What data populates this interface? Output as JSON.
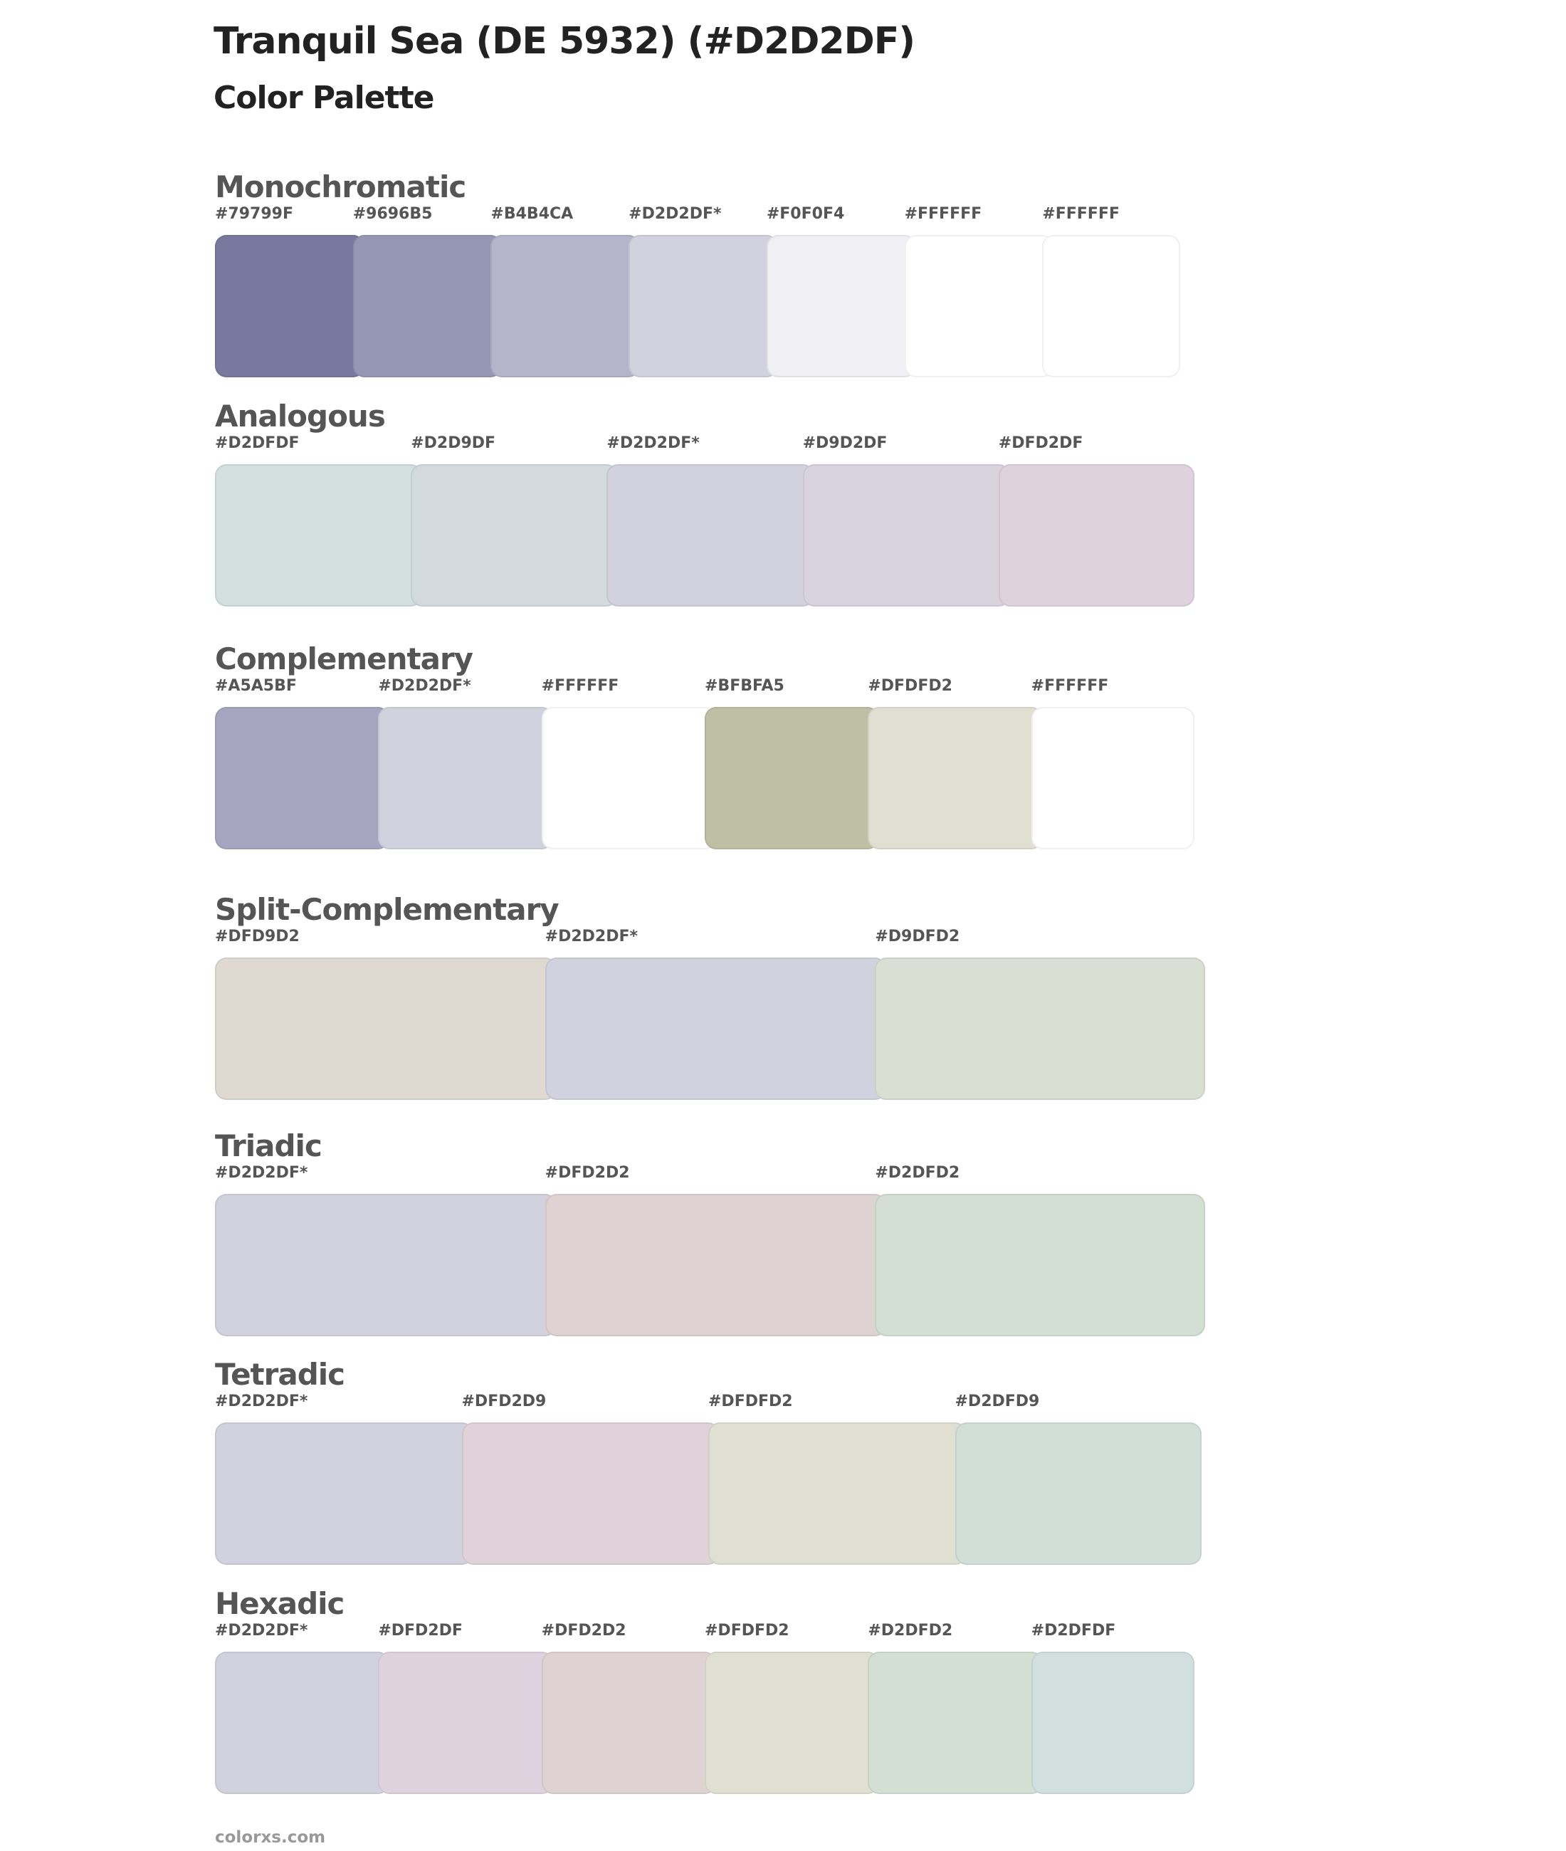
{
  "header": {
    "title": "Tranquil Sea (DE 5932) (#D2D2DF)",
    "subtitle": "Color Palette"
  },
  "sections": [
    {
      "name": "Monochromatic",
      "swatches": [
        {
          "label": "#79799F",
          "color": "#79799F"
        },
        {
          "label": "#9696B5",
          "color": "#9696B5"
        },
        {
          "label": "#B4B4CA",
          "color": "#B4B4CA"
        },
        {
          "label": "#D2D2DF*",
          "color": "#D2D2DF"
        },
        {
          "label": "#F0F0F4",
          "color": "#F0F0F4"
        },
        {
          "label": "#FFFFFF",
          "color": "#FFFFFF"
        },
        {
          "label": "#FFFFFF",
          "color": "#FFFFFF"
        }
      ]
    },
    {
      "name": "Analogous",
      "swatches": [
        {
          "label": "#D2DFDF",
          "color": "#D2DFDF"
        },
        {
          "label": "#D2D9DF",
          "color": "#D2D9DF"
        },
        {
          "label": "#D2D2DF*",
          "color": "#D2D2DF"
        },
        {
          "label": "#D9D2DF",
          "color": "#D9D2DF"
        },
        {
          "label": "#DFD2DF",
          "color": "#DFD2DF"
        }
      ]
    },
    {
      "name": "Complementary",
      "swatches": [
        {
          "label": "#A5A5BF",
          "color": "#A5A5BF"
        },
        {
          "label": "#D2D2DF*",
          "color": "#D2D2DF"
        },
        {
          "label": "#FFFFFF",
          "color": "#FFFFFF"
        },
        {
          "label": "#BFBFA5",
          "color": "#BFBFA5"
        },
        {
          "label": "#DFDFD2",
          "color": "#DFDFD2"
        },
        {
          "label": "#FFFFFF",
          "color": "#FFFFFF"
        }
      ]
    },
    {
      "name": "Split-Complementary",
      "swatches": [
        {
          "label": "#DFD9D2",
          "color": "#DFD9D2"
        },
        {
          "label": "#D2D2DF*",
          "color": "#D2D2DF"
        },
        {
          "label": "#D9DFD2",
          "color": "#D9DFD2"
        }
      ]
    },
    {
      "name": "Triadic",
      "swatches": [
        {
          "label": "#D2D2DF*",
          "color": "#D2D2DF"
        },
        {
          "label": "#DFD2D2",
          "color": "#DFD2D2"
        },
        {
          "label": "#D2DFD2",
          "color": "#D2DFD2"
        }
      ]
    },
    {
      "name": "Tetradic",
      "swatches": [
        {
          "label": "#D2D2DF*",
          "color": "#D2D2DF"
        },
        {
          "label": "#DFD2D9",
          "color": "#DFD2D9"
        },
        {
          "label": "#DFDFD2",
          "color": "#DFDFD2"
        },
        {
          "label": "#D2DFD9",
          "color": "#D2DFD9"
        }
      ]
    },
    {
      "name": "Hexadic",
      "swatches": [
        {
          "label": "#D2D2DF*",
          "color": "#D2D2DF"
        },
        {
          "label": "#DFD2DF",
          "color": "#DFD2DF"
        },
        {
          "label": "#DFD2D2",
          "color": "#DFD2D2"
        },
        {
          "label": "#DFDFD2",
          "color": "#DFDFD2"
        },
        {
          "label": "#D2DFD2",
          "color": "#D2DFD2"
        },
        {
          "label": "#D2DFDF",
          "color": "#D2DFDF"
        }
      ]
    }
  ],
  "footer": {
    "text": "colorxs.com"
  }
}
